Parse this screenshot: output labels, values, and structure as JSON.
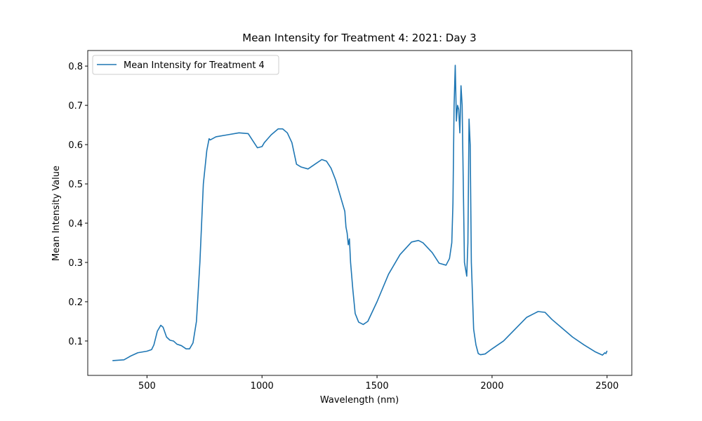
{
  "chart_data": {
    "type": "line",
    "title": "Mean Intensity for Treatment 4: 2021: Day 3",
    "xlabel": "Wavelength (nm)",
    "ylabel": "Mean Intensity Value",
    "legend": "upper left",
    "xlim": [
      242.5,
      2607.5
    ],
    "ylim": [
      0.0124,
      0.8396
    ],
    "xticks": [
      500,
      1000,
      1500,
      2000,
      2500
    ],
    "yticks": [
      0.1,
      0.2,
      0.3,
      0.4,
      0.5,
      0.6,
      0.7,
      0.8
    ],
    "series": [
      {
        "name": "Mean Intensity for Treatment 4",
        "color": "#1f77b4",
        "x": [
          350,
          400,
          430,
          460,
          500,
          520,
          530,
          545,
          560,
          570,
          585,
          600,
          615,
          630,
          650,
          670,
          685,
          700,
          715,
          730,
          745,
          760,
          770,
          775,
          800,
          850,
          900,
          940,
          960,
          980,
          1000,
          1010,
          1040,
          1070,
          1090,
          1110,
          1130,
          1150,
          1170,
          1200,
          1230,
          1260,
          1280,
          1300,
          1320,
          1340,
          1360,
          1365,
          1370,
          1375,
          1380,
          1385,
          1395,
          1405,
          1420,
          1440,
          1460,
          1500,
          1550,
          1600,
          1650,
          1680,
          1700,
          1740,
          1770,
          1800,
          1815,
          1825,
          1830,
          1835,
          1840,
          1845,
          1850,
          1855,
          1860,
          1865,
          1870,
          1875,
          1880,
          1890,
          1895,
          1900,
          1905,
          1910,
          1920,
          1930,
          1940,
          1950,
          1970,
          2000,
          2050,
          2100,
          2150,
          2200,
          2230,
          2260,
          2300,
          2350,
          2400,
          2450,
          2480,
          2490,
          2495,
          2500
        ],
        "values": [
          0.05,
          0.052,
          0.062,
          0.07,
          0.074,
          0.078,
          0.09,
          0.125,
          0.14,
          0.135,
          0.11,
          0.102,
          0.1,
          0.092,
          0.088,
          0.08,
          0.08,
          0.095,
          0.15,
          0.3,
          0.5,
          0.585,
          0.615,
          0.612,
          0.62,
          0.625,
          0.63,
          0.628,
          0.61,
          0.592,
          0.595,
          0.605,
          0.625,
          0.64,
          0.64,
          0.63,
          0.605,
          0.55,
          0.543,
          0.538,
          0.55,
          0.562,
          0.558,
          0.54,
          0.51,
          0.47,
          0.43,
          0.39,
          0.375,
          0.345,
          0.36,
          0.3,
          0.23,
          0.17,
          0.148,
          0.142,
          0.15,
          0.2,
          0.27,
          0.32,
          0.352,
          0.356,
          0.35,
          0.325,
          0.298,
          0.293,
          0.31,
          0.35,
          0.45,
          0.7,
          0.802,
          0.66,
          0.7,
          0.69,
          0.63,
          0.75,
          0.7,
          0.5,
          0.3,
          0.265,
          0.35,
          0.665,
          0.6,
          0.3,
          0.13,
          0.09,
          0.068,
          0.065,
          0.067,
          0.08,
          0.1,
          0.13,
          0.16,
          0.175,
          0.173,
          0.155,
          0.135,
          0.11,
          0.09,
          0.072,
          0.064,
          0.07,
          0.068,
          0.075
        ]
      }
    ]
  }
}
